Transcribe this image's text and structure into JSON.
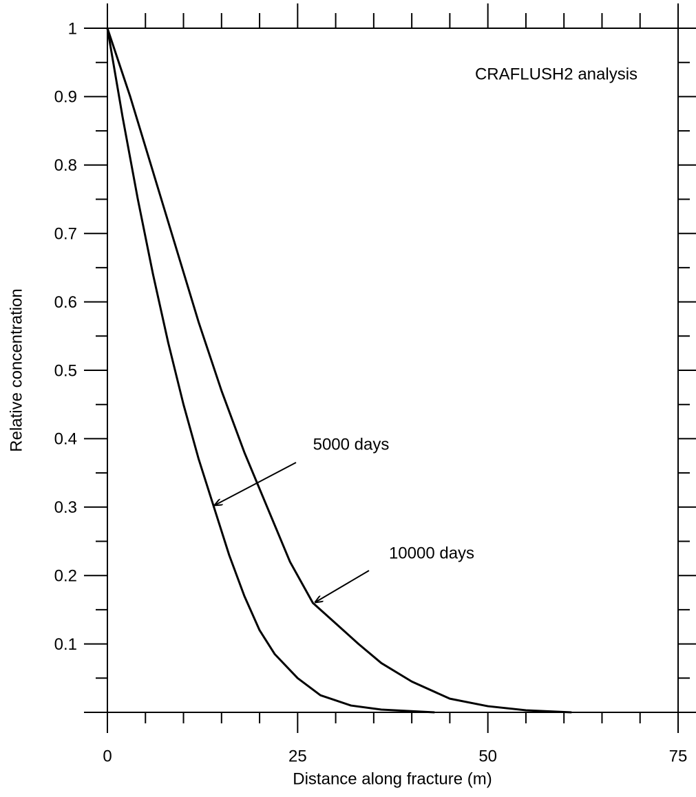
{
  "chart_data": {
    "type": "line",
    "xlabel": "Distance along fracture (m)",
    "ylabel": "Relative concentration",
    "annotations": [
      "CRAFLUSH2 analysis",
      "5000 days",
      "10000 days"
    ],
    "xlim": [
      0,
      75
    ],
    "xticks": [
      0,
      25,
      50,
      75
    ],
    "xminorticks": [
      5,
      10,
      15,
      20,
      30,
      35,
      40,
      45,
      55,
      60,
      65,
      70
    ],
    "ylim": [
      0,
      1
    ],
    "yticks": [
      0.1,
      0.2,
      0.3,
      0.4,
      0.5,
      0.6,
      0.7,
      0.8,
      0.9,
      1
    ],
    "yminorticks": [
      0.05,
      0.15,
      0.25,
      0.35,
      0.45,
      0.55,
      0.65,
      0.75,
      0.85,
      0.95
    ],
    "grid": false,
    "series": [
      {
        "name": "5000 days",
        "color": "#000000",
        "x": [
          0,
          2,
          4,
          6,
          8,
          10,
          12,
          14,
          16,
          18,
          20,
          22,
          25,
          28,
          32,
          36,
          43
        ],
        "values": [
          1,
          0.87,
          0.75,
          0.64,
          0.54,
          0.45,
          0.37,
          0.3,
          0.23,
          0.17,
          0.12,
          0.085,
          0.05,
          0.025,
          0.01,
          0.004,
          0
        ]
      },
      {
        "name": "10000 days",
        "color": "#000000",
        "x": [
          0,
          3,
          6,
          9,
          12,
          15,
          18,
          21,
          24,
          27,
          30,
          33,
          36,
          40,
          45,
          50,
          55,
          61
        ],
        "values": [
          1,
          0.9,
          0.79,
          0.68,
          0.57,
          0.47,
          0.38,
          0.3,
          0.22,
          0.16,
          0.13,
          0.1,
          0.072,
          0.045,
          0.02,
          0.009,
          0.003,
          0
        ]
      }
    ]
  }
}
